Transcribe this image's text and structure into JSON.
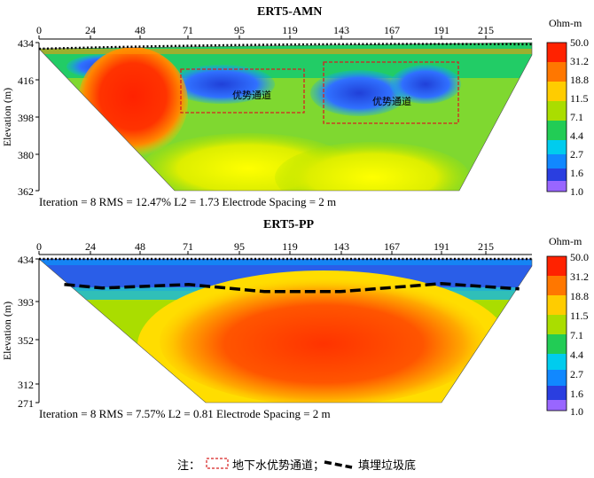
{
  "panels": [
    {
      "title": "ERT5-AMN",
      "ylabel": "Elevation (m)",
      "x_ticks": [
        0,
        24,
        48,
        71,
        95,
        119,
        143,
        167,
        191,
        215
      ],
      "y_ticks": [
        434,
        416,
        398,
        380,
        362
      ],
      "colorbar_unit": "Ohm-m",
      "colorbar_ticks": [
        "50.0",
        "31.2",
        "18.8",
        "11.5",
        "7.1",
        "4.4",
        "2.7",
        "1.6",
        "1.0"
      ],
      "stats": "Iteration = 8  RMS = 12.47%  L2 = 1.73  Electrode Spacing = 2 m",
      "annotations": [
        "优势通道",
        "优势通道"
      ]
    },
    {
      "title": "ERT5-PP",
      "ylabel": "Elevation (m)",
      "x_ticks": [
        0,
        24,
        48,
        71,
        95,
        119,
        143,
        167,
        191,
        215
      ],
      "y_ticks": [
        434,
        393,
        352,
        312,
        271
      ],
      "colorbar_unit": "Ohm-m",
      "colorbar_ticks": [
        "50.0",
        "31.2",
        "18.8",
        "11.5",
        "7.1",
        "4.4",
        "2.7",
        "1.6",
        "1.0"
      ],
      "stats": "Iteration = 8  RMS = 7.57%  L2 = 0.81  Electrode Spacing = 2 m"
    }
  ],
  "legend": {
    "prefix": "注：",
    "channel_label": "地下水优势通道；",
    "landfill_label": "填埋垃圾底"
  },
  "colors": {
    "scale": [
      "#7f00ff",
      "#3030e0",
      "#0066ff",
      "#00b7ff",
      "#00e0c0",
      "#22cc22",
      "#99dd00",
      "#ffff00",
      "#ffb000",
      "#ff6600",
      "#ff2200"
    ],
    "channel_box": "#d62020",
    "landfill_line": "#000000"
  },
  "chart_data": [
    {
      "type": "heatmap",
      "title": "ERT5-AMN",
      "xlabel": "",
      "ylabel": "Elevation (m)",
      "xlim": [
        0,
        234
      ],
      "ylim": [
        362,
        434
      ],
      "colorbar": {
        "unit": "Ohm-m",
        "min": 1.0,
        "max": 50.0,
        "scale": "log"
      },
      "iteration": 8,
      "rms_percent": 12.47,
      "l2": 1.73,
      "electrode_spacing_m": 2,
      "features": [
        {
          "kind": "high-resistivity body",
          "x": [
            27,
            60
          ],
          "y": [
            376,
            426
          ]
        },
        {
          "kind": "groundwater channel box",
          "label": "优势通道",
          "x": [
            66,
            126
          ],
          "y": [
            403,
            427
          ]
        },
        {
          "kind": "groundwater channel box",
          "label": "优势通道",
          "x": [
            134,
            198
          ],
          "y": [
            396,
            427
          ]
        }
      ]
    },
    {
      "type": "heatmap",
      "title": "ERT5-PP",
      "xlabel": "",
      "ylabel": "Elevation (m)",
      "xlim": [
        0,
        234
      ],
      "ylim": [
        271,
        434
      ],
      "colorbar": {
        "unit": "Ohm-m",
        "min": 1.0,
        "max": 50.0,
        "scale": "log"
      },
      "iteration": 8,
      "rms_percent": 7.57,
      "l2": 0.81,
      "electrode_spacing_m": 2,
      "landfill_bottom": {
        "x": [
          12,
          30,
          71,
          107,
          143,
          191,
          228
        ],
        "y": [
          405,
          401,
          405,
          397,
          397,
          406,
          400
        ]
      }
    }
  ]
}
